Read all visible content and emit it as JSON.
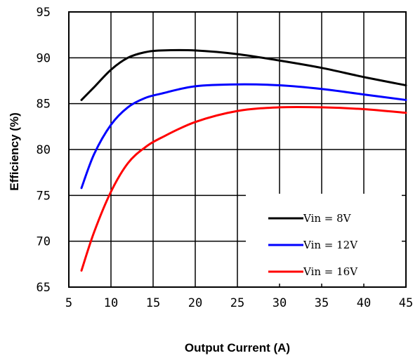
{
  "chart_data": {
    "type": "line",
    "title": "",
    "xlabel": "Output Current (A)",
    "ylabel": "Efficiency (%)",
    "xlim": [
      5,
      45
    ],
    "ylim": [
      65,
      95
    ],
    "xticks": [
      "5",
      "10",
      "15",
      "20",
      "25",
      "30",
      "35",
      "40",
      "45"
    ],
    "yticks": [
      "65",
      "70",
      "75",
      "80",
      "85",
      "90",
      "95"
    ],
    "grid": true,
    "legend_position": "bottom-right",
    "series": [
      {
        "name": "Vin = 8V",
        "color": "#000000",
        "x": [
          6.5,
          8,
          10,
          12,
          14,
          16,
          20,
          25,
          30,
          35,
          40,
          45
        ],
        "y": [
          85.4,
          86.8,
          88.7,
          90.0,
          90.6,
          90.8,
          90.8,
          90.4,
          89.7,
          88.9,
          87.9,
          87.0
        ]
      },
      {
        "name": "Vin = 12V",
        "color": "#0000ff",
        "x": [
          6.5,
          8,
          10,
          12,
          14,
          16,
          20,
          25,
          30,
          35,
          40,
          45
        ],
        "y": [
          75.8,
          79.5,
          82.7,
          84.6,
          85.6,
          86.1,
          86.9,
          87.1,
          87.0,
          86.6,
          86.0,
          85.4
        ]
      },
      {
        "name": "Vin = 16V",
        "color": "#ff0000",
        "x": [
          6.5,
          8,
          10,
          12,
          14,
          16,
          20,
          25,
          30,
          35,
          40,
          45
        ],
        "y": [
          66.8,
          71.0,
          75.4,
          78.5,
          80.2,
          81.3,
          83.0,
          84.2,
          84.6,
          84.6,
          84.4,
          84.0
        ]
      }
    ]
  }
}
